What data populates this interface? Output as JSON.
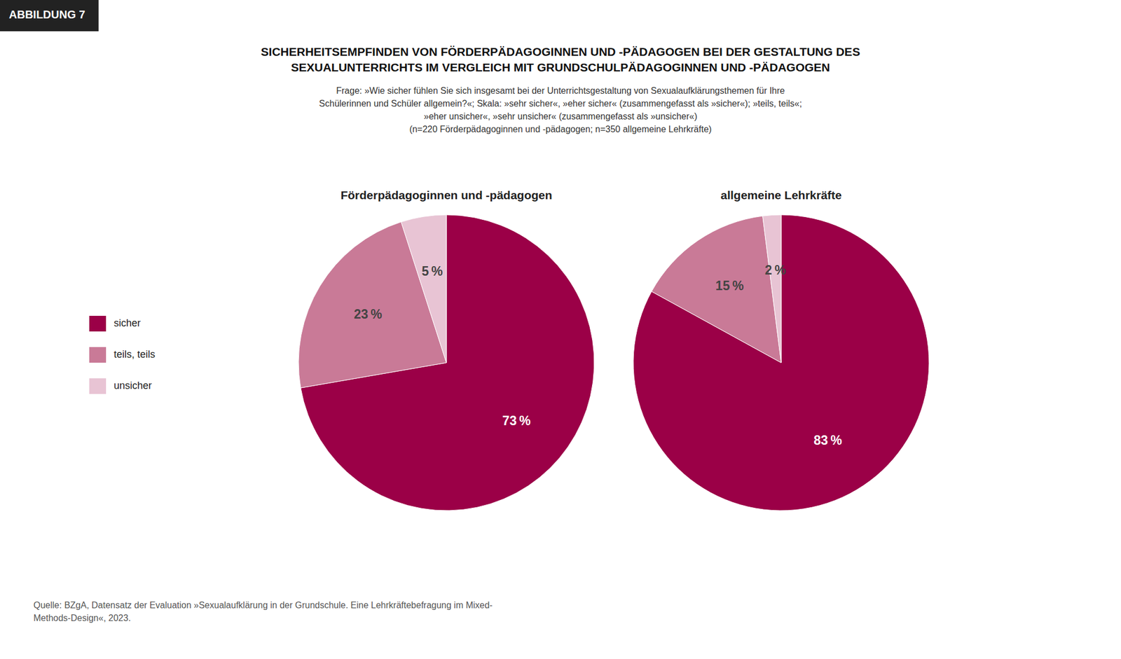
{
  "chart_data": {
    "type": "pie",
    "title": "SICHERHEITSEMPFINDEN VON FÖRDERPÄDAGOGINNEN UND -PÄDAGOGEN BEI DER GESTALTUNG DES\nSEXUALUNTERRICHTS IM VERGLEICH MIT GRUNDSCHULPÄDAGOGINNEN UND -PÄDAGOGEN",
    "subtitle": "Frage: »Wie sicher fühlen Sie sich insgesamt bei der Unterrichtsgestaltung von Sexualaufklärungsthemen für Ihre\nSchülerinnen und Schüler allgemein?«; Skala: »sehr sicher«, »eher sicher« (zusammengefasst als »sicher«); »teils, teils«;\n»eher unsicher«, »sehr unsicher« (zusammengefasst als »unsicher«)\n(n=220 Förderpädagoginnen und -pädagogen; n=350 allgemeine Lehrkräfte)",
    "annotations": [
      "ABBILDUNG 7",
      "Quelle: BZgA, Datensatz der Evaluation »Sexualaufklärung in der Grundschule. Eine Lehrkräftebefragung im Mixed-\nMethods-Design«, 2023."
    ],
    "categories": [
      "sicher",
      "teils, teils",
      "unsicher"
    ],
    "colors": [
      "#9B0047",
      "#C97A97",
      "#E8C4D4"
    ],
    "series": [
      {
        "name": "Förderpädagoginnen und -pädagogen",
        "values": [
          73,
          23,
          5
        ],
        "value_labels": [
          "73 %",
          "23 %",
          "5 %"
        ]
      },
      {
        "name": "allgemeine Lehrkräfte",
        "values": [
          83,
          15,
          2
        ],
        "value_labels": [
          "83 %",
          "15 %",
          "2 %"
        ]
      }
    ],
    "data_labels": true,
    "legend": "left"
  }
}
